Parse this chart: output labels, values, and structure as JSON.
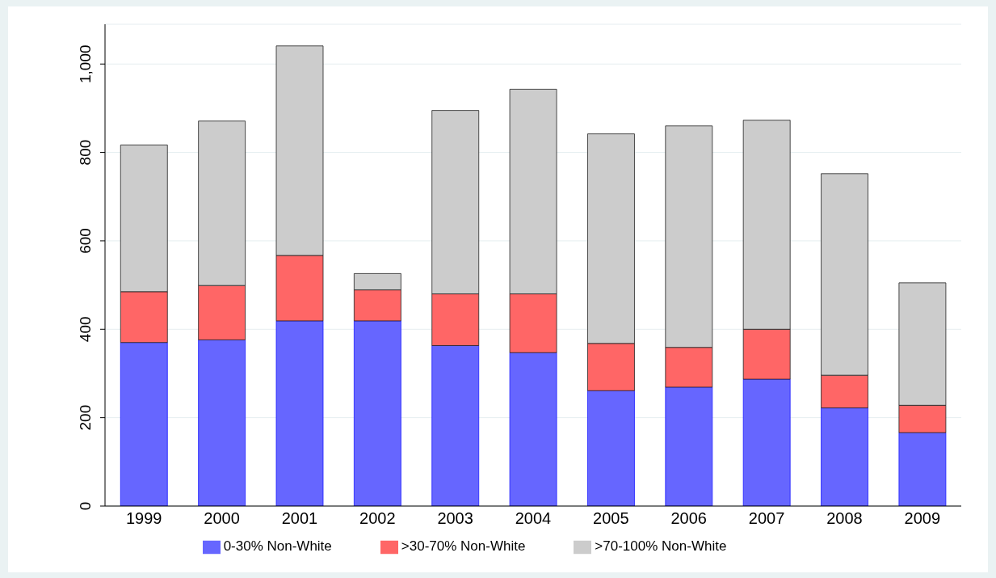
{
  "chart_data": {
    "type": "bar",
    "stacked": true,
    "categories": [
      "1999",
      "2000",
      "2001",
      "2002",
      "2003",
      "2004",
      "2005",
      "2006",
      "2007",
      "2008",
      "2009"
    ],
    "series": [
      {
        "name": "0-30% Non-White",
        "color": "#6666ff",
        "values": [
          370,
          376,
          419,
          419,
          363,
          347,
          261,
          269,
          287,
          222,
          166
        ]
      },
      {
        "name": ">30-70% Non-White",
        "color": "#ff6666",
        "values": [
          115,
          123,
          148,
          70,
          117,
          133,
          107,
          90,
          113,
          74,
          62
        ]
      },
      {
        "name": ">70-100% Non-White",
        "color": "#cccccc",
        "values": [
          332,
          372,
          474,
          37,
          415,
          463,
          474,
          501,
          473,
          456,
          277
        ]
      }
    ],
    "ylim": [
      0,
      1090
    ],
    "yticks": [
      0,
      200,
      400,
      600,
      800,
      {
        "value": 1000,
        "label": "1,000"
      }
    ],
    "grid": "y",
    "legend": "bottom"
  }
}
